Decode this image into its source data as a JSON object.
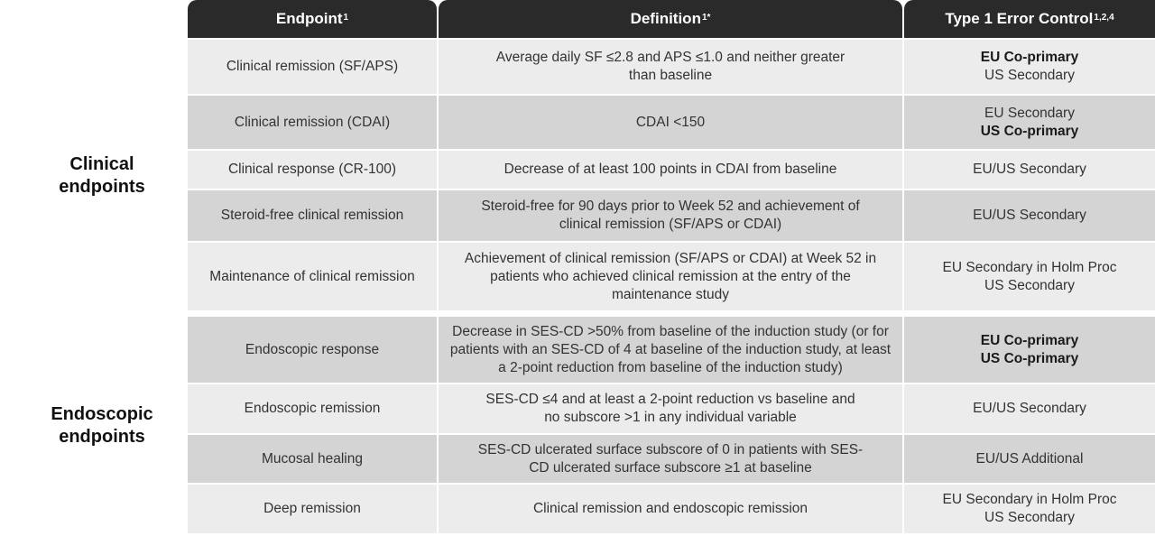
{
  "headers": {
    "endpoint": "Endpoint",
    "endpoint_sup": "1",
    "definition": "Definition",
    "definition_sup": "1*",
    "type1": "Type 1 Error Control",
    "type1_sup": "1,2,4"
  },
  "groups": {
    "clinical": {
      "line1": "Clinical",
      "line2": "endpoints"
    },
    "endoscopic": {
      "line1": "Endoscopic",
      "line2": "endpoints"
    }
  },
  "rows": [
    {
      "endpoint": "Clinical remission (SF/APS)",
      "definition": "Average daily SF ≤2.8 and APS ≤1.0 and neither greater than baseline",
      "t1_line1": "EU Co-primary",
      "t1_line2": "US Secondary"
    },
    {
      "endpoint": "Clinical remission (CDAI)",
      "definition": "CDAI <150",
      "t1_line1": "EU Secondary",
      "t1_line2": "US Co-primary"
    },
    {
      "endpoint": "Clinical response (CR-100)",
      "definition": "Decrease of at least 100 points in CDAI from baseline",
      "t1_line1": "EU/US Secondary",
      "t1_line2": ""
    },
    {
      "endpoint": "Steroid-free clinical remission",
      "definition": "Steroid-free for 90 days prior to Week 52 and achievement of clinical remission (SF/APS or CDAI)",
      "t1_line1": "EU/US Secondary",
      "t1_line2": ""
    },
    {
      "endpoint": "Maintenance of clinical remission",
      "definition": "Achievement of clinical remission (SF/APS or CDAI) at Week 52 in patients who achieved clinical remission at the entry of the maintenance study",
      "t1_line1": "EU Secondary in Holm Proc",
      "t1_line2": "US Secondary"
    },
    {
      "endpoint": "Endoscopic response",
      "definition": "Decrease in SES-CD >50% from baseline of the induction study (or for patients with an SES-CD of 4 at baseline of the induction study, at least a 2-point reduction from baseline of the induction study)",
      "t1_line1": "EU Co-primary",
      "t1_line2": "US Co-primary"
    },
    {
      "endpoint": "Endoscopic remission",
      "definition": "SES-CD ≤4 and at least a 2-point reduction vs baseline and no subscore >1 in any individual variable",
      "t1_line1": "EU/US Secondary",
      "t1_line2": ""
    },
    {
      "endpoint": "Mucosal healing",
      "definition": "SES-CD ulcerated surface subscore of 0 in patients with SES-CD ulcerated surface subscore ≥1 at baseline",
      "t1_line1": "EU/US Additional",
      "t1_line2": ""
    },
    {
      "endpoint": "Deep remission",
      "definition": "Clinical remission and endoscopic remission",
      "t1_line1": "EU Secondary in Holm Proc",
      "t1_line2": "US Secondary"
    }
  ]
}
